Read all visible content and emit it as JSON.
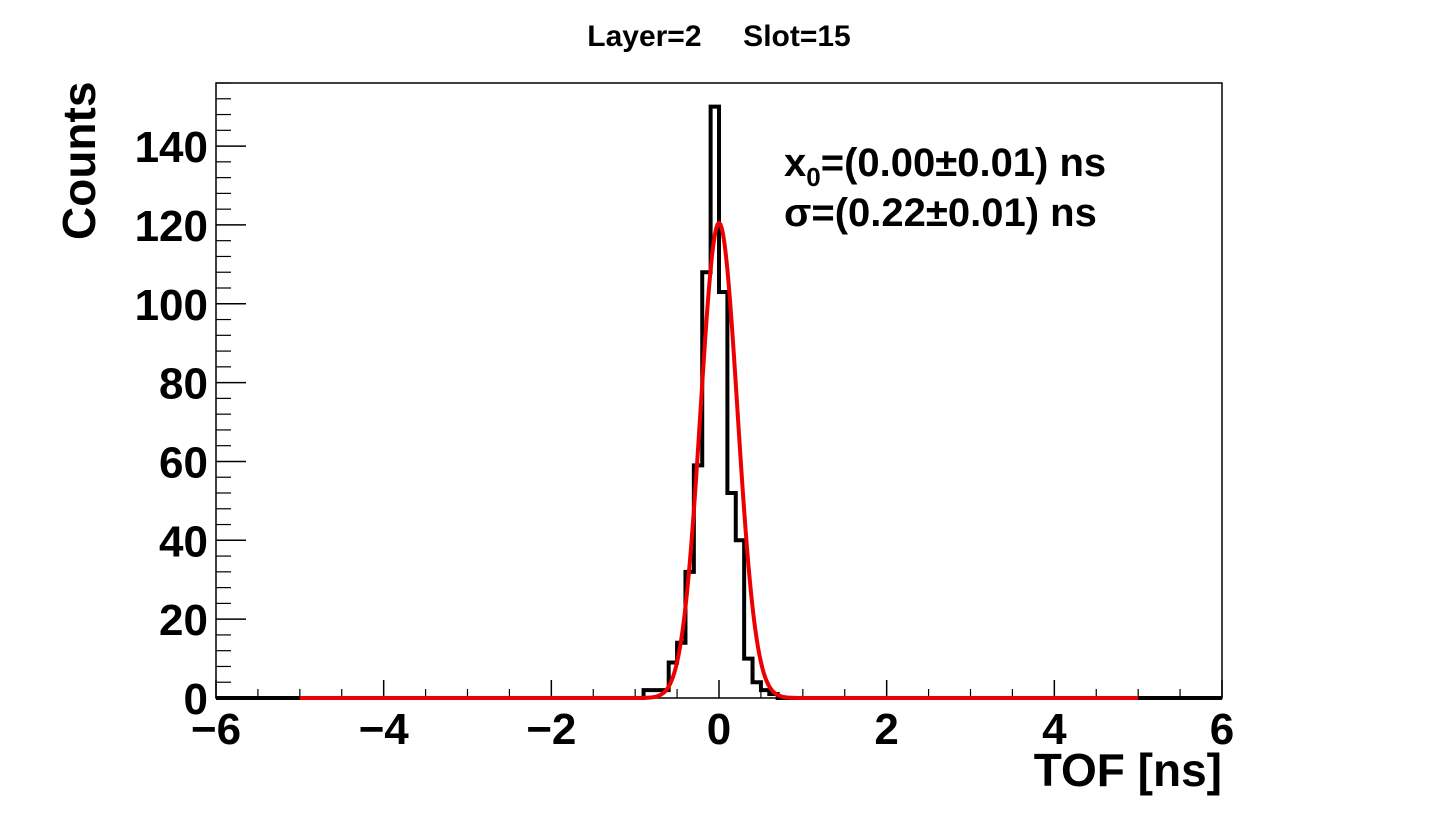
{
  "chart_data": {
    "type": "bar",
    "title": "Layer=2     Slot=15",
    "xlabel": "TOF [ns]",
    "ylabel": "Counts",
    "xlim": [
      -6,
      6
    ],
    "ylim": [
      0,
      156
    ],
    "x_ticks": [
      -6,
      -4,
      -2,
      0,
      2,
      4,
      6
    ],
    "x_tick_labels": [
      "−6",
      "−4",
      "−2",
      "0",
      "2",
      "4",
      "6"
    ],
    "y_ticks": [
      0,
      20,
      40,
      60,
      80,
      100,
      120,
      140
    ],
    "y_tick_labels": [
      "0",
      "20",
      "40",
      "60",
      "80",
      "100",
      "120",
      "140"
    ],
    "grid": false,
    "legend": "none",
    "histogram": {
      "name": "Counts",
      "color": "#000000",
      "bin_width": 0.1,
      "bin_edges_start": -0.9,
      "counts": [
        2,
        2,
        2,
        9,
        14,
        32,
        59,
        108,
        150,
        103,
        52,
        40,
        10,
        4,
        2,
        1
      ]
    },
    "fit": {
      "type": "gaussian",
      "color": "#ee0000",
      "range": [
        -5,
        5
      ],
      "amplitude": 120.5,
      "mean": 0.0,
      "sigma": 0.22
    },
    "annotations": {
      "x0_symbol": "x",
      "x0_subscript": "0",
      "x0_value": "=(0.00±0.01) ns",
      "sigma_text": "σ=(0.22±0.01) ns"
    }
  }
}
